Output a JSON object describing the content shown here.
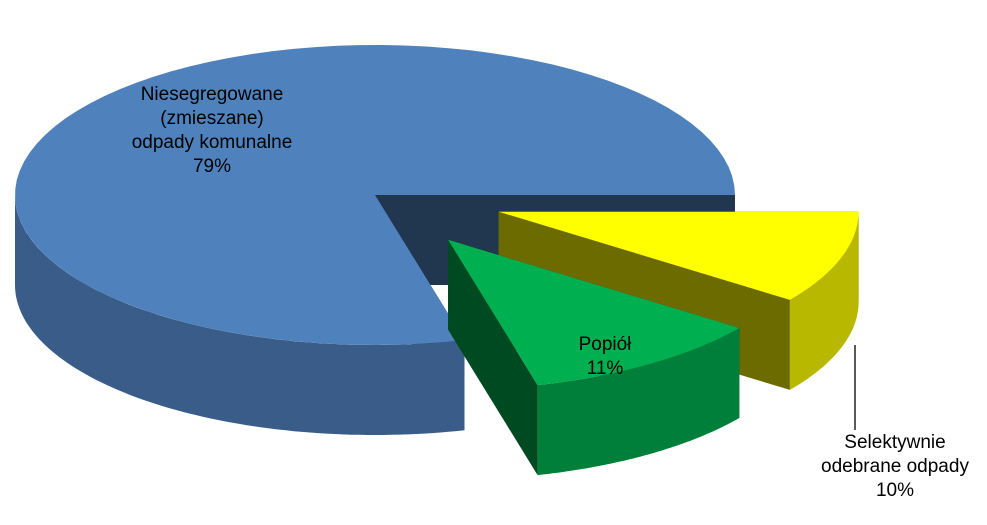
{
  "chart_data": {
    "type": "pie",
    "categories": [
      "Niesegregowane (zmieszane) odpady komunalne",
      "Popiół",
      "Selektywnie odebrane odpady"
    ],
    "values": [
      79,
      11,
      10
    ],
    "value_labels": [
      "79%",
      "11%",
      "10%"
    ],
    "colors": [
      "#4f81bd",
      "#00b050",
      "#ffff00"
    ]
  }
}
